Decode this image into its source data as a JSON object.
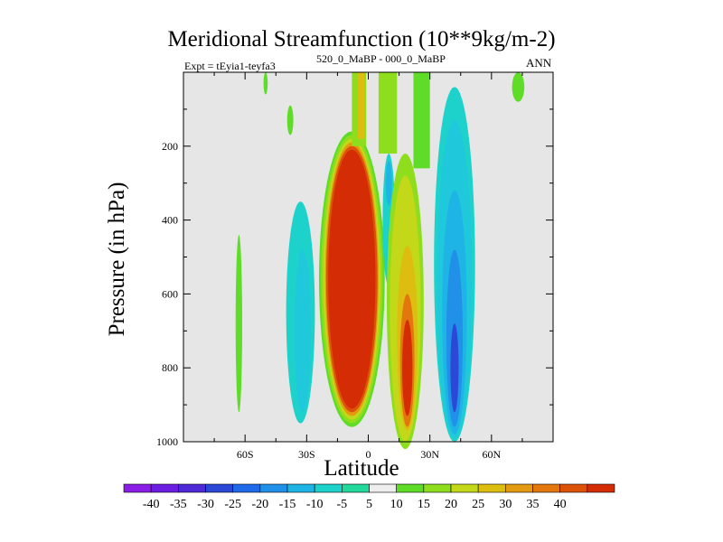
{
  "chart_data": {
    "type": "heatmap",
    "title": "Meridional Streamfunction (10**9kg/m-2)",
    "left_label": "Expt = tEyia1-teyfa3",
    "left_label_super": "520_0_MaBP - 000_0_MaBP",
    "right_label": "ANN",
    "xlabel": "Latitude",
    "ylabel": "Pressure (in hPa)",
    "xlim": [
      -90,
      90
    ],
    "ylim": [
      1000,
      0
    ],
    "xticks": [
      {
        "value": -60,
        "label": "60S"
      },
      {
        "value": -30,
        "label": "30S"
      },
      {
        "value": 0,
        "label": "0"
      },
      {
        "value": 30,
        "label": "30N"
      },
      {
        "value": 60,
        "label": "60N"
      }
    ],
    "yticks": [
      200,
      400,
      600,
      800,
      1000
    ],
    "colorbar": {
      "levels": [
        -40,
        -35,
        -30,
        -25,
        -20,
        -15,
        -10,
        -5,
        5,
        10,
        15,
        20,
        25,
        30,
        35,
        40
      ],
      "colors": [
        "#8a1ee6",
        "#6c1ee0",
        "#4d2ad6",
        "#2b48d6",
        "#1f6ae8",
        "#2090e8",
        "#1fb4e6",
        "#1ed2cc",
        "#22d89a",
        "#eeeeee",
        "#5edc28",
        "#8ede1e",
        "#c2d818",
        "#ddbe10",
        "#e29a10",
        "#e2770e",
        "#dc5208",
        "#d42c04"
      ],
      "tick_labels": [
        "-40",
        "-35",
        "-30",
        "-25",
        "-20",
        "-15",
        "-10",
        "-5",
        "5",
        "10",
        "15",
        "20",
        "25",
        "30",
        "35",
        "40"
      ]
    },
    "features": [
      {
        "name": "southern-hadley-cell-max",
        "lat": -5,
        "plev": 500,
        "value": 40
      },
      {
        "name": "northern-ferrel-positive",
        "lat": 20,
        "plev": 800,
        "value": 40
      },
      {
        "name": "northern-negative-cell",
        "lat": 42,
        "plev": 800,
        "value": -35
      }
    ]
  }
}
